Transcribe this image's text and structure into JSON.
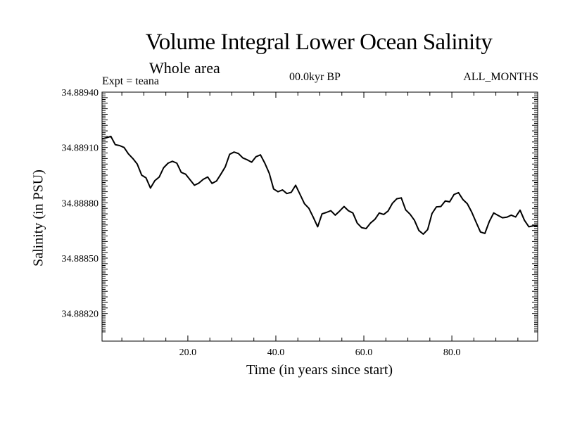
{
  "chart_data": {
    "type": "line",
    "title": "Volume Integral Lower Ocean Salinity",
    "subtitle": "Whole area",
    "experiment": "Expt = teana",
    "period": "00.0kyr BP",
    "months": "ALL_MONTHS",
    "xlabel": "Time (in years since start)",
    "ylabel": "Salinity (in PSU)",
    "xlim": [
      0.5,
      99.5
    ],
    "ylim": [
      34.88805,
      34.8894
    ],
    "xticks": [
      {
        "value": 20,
        "label": "20.0"
      },
      {
        "value": 40,
        "label": "40.0"
      },
      {
        "value": 60,
        "label": "60.0"
      },
      {
        "value": 80,
        "label": "80.0"
      }
    ],
    "yticks": [
      {
        "value": 34.8882,
        "label": "34.88820"
      },
      {
        "value": 34.8885,
        "label": "34.88850"
      },
      {
        "value": 34.8888,
        "label": "34.88880"
      },
      {
        "value": 34.8891,
        "label": "34.88910"
      },
      {
        "value": 34.8894,
        "label": "34.88940"
      }
    ],
    "series": [
      {
        "name": "Salinity",
        "x": [
          0.5,
          1.5,
          2.5,
          3.5,
          4.5,
          5.5,
          6.5,
          7.5,
          8.5,
          9.5,
          10.5,
          11.5,
          12.5,
          13.5,
          14.5,
          15.5,
          16.5,
          17.5,
          18.5,
          19.5,
          20.5,
          21.5,
          22.5,
          23.5,
          24.5,
          25.5,
          26.5,
          27.5,
          28.5,
          29.5,
          30.5,
          31.5,
          32.5,
          33.5,
          34.5,
          35.5,
          36.5,
          37.5,
          38.5,
          39.5,
          40.5,
          41.5,
          42.5,
          43.5,
          44.5,
          45.5,
          46.5,
          47.5,
          48.5,
          49.5,
          50.5,
          51.5,
          52.5,
          53.5,
          54.5,
          55.5,
          56.5,
          57.5,
          58.5,
          59.5,
          60.5,
          61.5,
          62.5,
          63.5,
          64.5,
          65.5,
          66.5,
          67.5,
          68.5,
          69.5,
          70.5,
          71.5,
          72.5,
          73.5,
          74.5,
          75.5,
          76.5,
          77.5,
          78.5,
          79.5,
          80.5,
          81.5,
          82.5,
          83.5,
          84.5,
          85.5,
          86.5,
          87.5,
          88.5,
          89.5,
          90.5,
          91.5,
          92.5,
          93.5,
          94.5,
          95.5,
          96.5,
          97.5,
          98.5,
          99.5
        ],
        "values": [
          34.889147,
          34.889153,
          34.88916,
          34.889115,
          34.88911,
          34.8891,
          34.889065,
          34.88904,
          34.88901,
          34.88895,
          34.888935,
          34.88888,
          34.88892,
          34.88894,
          34.88899,
          34.889015,
          34.889025,
          34.889015,
          34.888965,
          34.888955,
          34.888925,
          34.888895,
          34.888907,
          34.888927,
          34.88894,
          34.888905,
          34.888918,
          34.888955,
          34.888995,
          34.889063,
          34.889075,
          34.889067,
          34.889043,
          34.889033,
          34.88902,
          34.88905,
          34.88906,
          34.889015,
          34.88896,
          34.888875,
          34.88886,
          34.88887,
          34.88885,
          34.888857,
          34.888895,
          34.888845,
          34.888795,
          34.88877,
          34.888722,
          34.88867,
          34.88874,
          34.888748,
          34.888757,
          34.888733,
          34.888755,
          34.88878,
          34.888757,
          34.888745,
          34.88869,
          34.888665,
          34.88866,
          34.88869,
          34.88871,
          34.888745,
          34.888737,
          34.888755,
          34.888798,
          34.888822,
          34.888827,
          34.888762,
          34.888738,
          34.888705,
          34.88865,
          34.88863,
          34.888655,
          34.888742,
          34.888778,
          34.88878,
          34.88881,
          34.888805,
          34.888845,
          34.888855,
          34.888818,
          34.888795,
          34.88875,
          34.888695,
          34.888642,
          34.888634,
          34.888698,
          34.888745,
          34.888732,
          34.888719,
          34.888722,
          34.888733,
          34.888723,
          34.88876,
          34.888705,
          34.88867,
          34.888675,
          34.888675
        ]
      }
    ]
  }
}
